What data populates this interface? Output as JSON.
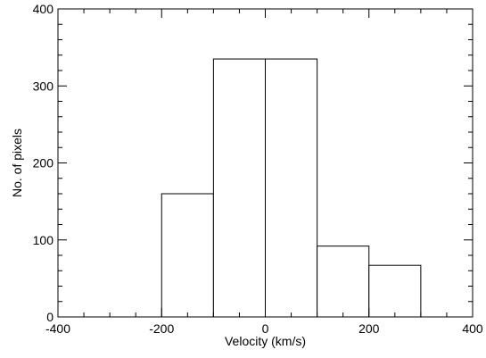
{
  "chart_data": {
    "type": "bar",
    "title": "",
    "xlabel": "Velocity (km/s)",
    "ylabel": "No. of pixels",
    "xlim": [
      -400,
      400
    ],
    "ylim": [
      0,
      400
    ],
    "x_ticks": [
      -400,
      -200,
      0,
      200,
      400
    ],
    "y_ticks": [
      0,
      100,
      200,
      300,
      400
    ],
    "grid": false,
    "legend": "none",
    "bins": [
      {
        "x0": -200,
        "x1": -100,
        "value": 160
      },
      {
        "x0": -100,
        "x1": 0,
        "value": 335
      },
      {
        "x0": 0,
        "x1": 100,
        "value": 335
      },
      {
        "x0": 100,
        "x1": 200,
        "value": 92
      },
      {
        "x0": 200,
        "x1": 300,
        "value": 67
      }
    ],
    "colors": {
      "line": "#000000",
      "fill": "#ffffff"
    }
  }
}
